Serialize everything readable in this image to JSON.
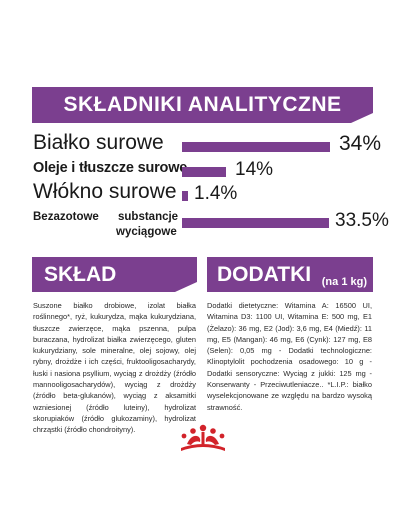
{
  "analytic": {
    "title": "SKŁADNIKI ANALITYCZNE",
    "rows": [
      {
        "label": "Białko surowe",
        "value": "34%"
      },
      {
        "label": "Oleje i tłuszcze surowe",
        "value": "14%"
      },
      {
        "label": "Włókno surowe",
        "value": "1.4%"
      },
      {
        "label_line1": "Bezazotowe",
        "label_mid": "substancje",
        "label_line2": "wyciągowe",
        "value": "33.5%"
      }
    ]
  },
  "composition": {
    "title": "SKŁAD",
    "text": "Suszone białko drobiowe, izolat białka roślinnego*, ryż, kukurydza, mąka kukurydziana, tłuszcze zwierzęce, mąka pszenna, pulpa buraczana, hydrolizat białka zwierzęcego, gluten kukurydziany, sole mineralne, olej sojowy, olej rybny, drożdże i ich części, fruktooligosacharydy, łuski i nasiona psyllium, wyciąg z drożdży (źródło mannooligosacharydów), wyciąg z drożdży (źródło beta-glukanów), wyciąg z aksamitki wzniesionej (źródło luteiny), hydrolizat skorupiaków (źródło glukozaminy), hydrolizat chrząstki (źródło chondroityny)."
  },
  "additives": {
    "title": "DODATKI",
    "unit": "(na 1 kg)",
    "text": "Dodatki dietetyczne: Witamina A: 16500 UI, Witamina D3: 1100 UI, Witamina E: 500 mg, E1 (Żelazo): 36 mg, E2 (Jod): 3,6 mg, E4 (Miedź): 11 mg, E5 (Mangan): 46 mg, E6 (Cynk): 127 mg, E8 (Selen): 0,05 mg - Dodatki technologiczne: Klinoptylolit pochodzenia osadowego: 10 g - Dodatki sensoryczne: Wyciąg z jukki: 125 mg - Konserwanty - Przeciwutleniacze.. *L.I.P.: białko wyselekcjonowane ze względu na bardzo wysoką strawność."
  },
  "bar_levels": {
    "protein": 0.34,
    "fat": 0.14,
    "fiber": 0.014,
    "nfe": 0.335
  },
  "colors": {
    "brand_purple": "#7b3f8f",
    "crown_red": "#d2232a"
  }
}
